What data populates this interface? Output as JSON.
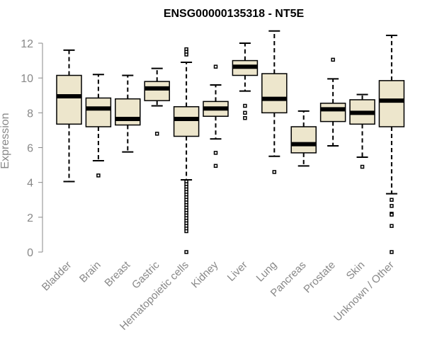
{
  "chart_data": {
    "type": "boxplot",
    "title": "ENSG00000135318 - NT5E",
    "xlabel": "",
    "ylabel": "Expression",
    "ylim": [
      0,
      12
    ],
    "yticks": [
      0,
      2,
      4,
      6,
      8,
      10,
      12
    ],
    "box_fill": "#ede6cc",
    "categories": [
      "Bladder",
      "Brain",
      "Breast",
      "Gastric",
      "Hematopoietic cells",
      "Kidney",
      "Liver",
      "Lung",
      "Pancreas",
      "Prostate",
      "Skin",
      "Unknown / Other"
    ],
    "boxes": [
      {
        "whisker_low": 4.05,
        "q1": 7.35,
        "median": 8.95,
        "q3": 10.15,
        "whisker_high": 11.6,
        "outliers": []
      },
      {
        "whisker_low": 5.25,
        "q1": 7.2,
        "median": 8.25,
        "q3": 8.85,
        "whisker_high": 10.2,
        "outliers": [
          4.4
        ]
      },
      {
        "whisker_low": 5.75,
        "q1": 7.3,
        "median": 7.65,
        "q3": 8.8,
        "whisker_high": 10.15,
        "outliers": []
      },
      {
        "whisker_low": 8.4,
        "q1": 8.7,
        "median": 9.4,
        "q3": 9.8,
        "whisker_high": 10.55,
        "outliers": [
          6.8
        ]
      },
      {
        "whisker_low": 4.15,
        "q1": 6.65,
        "median": 7.65,
        "q3": 8.35,
        "whisker_high": 10.9,
        "outliers": [
          11.65,
          11.5,
          11.35,
          4.05,
          3.9,
          3.75,
          3.6,
          3.45,
          3.3,
          3.15,
          3.0,
          2.85,
          2.7,
          2.55,
          2.4,
          2.25,
          2.1,
          1.95,
          1.8,
          1.65,
          1.5,
          1.35,
          1.2,
          0.0
        ]
      },
      {
        "whisker_low": 6.5,
        "q1": 7.8,
        "median": 8.25,
        "q3": 8.65,
        "whisker_high": 9.6,
        "outliers": [
          10.65,
          5.7,
          4.95
        ]
      },
      {
        "whisker_low": 9.25,
        "q1": 10.15,
        "median": 10.65,
        "q3": 11.0,
        "whisker_high": 12.0,
        "outliers": [
          8.4,
          8.0,
          7.7
        ]
      },
      {
        "whisker_low": 5.5,
        "q1": 8.0,
        "median": 8.8,
        "q3": 10.25,
        "whisker_high": 12.7,
        "outliers": [
          4.6
        ]
      },
      {
        "whisker_low": 4.95,
        "q1": 5.7,
        "median": 6.2,
        "q3": 7.2,
        "whisker_high": 8.1,
        "outliers": []
      },
      {
        "whisker_low": 6.1,
        "q1": 7.5,
        "median": 8.2,
        "q3": 8.55,
        "whisker_high": 9.95,
        "outliers": [
          11.05
        ]
      },
      {
        "whisker_low": 5.45,
        "q1": 7.35,
        "median": 8.0,
        "q3": 8.75,
        "whisker_high": 9.05,
        "outliers": [
          4.9
        ]
      },
      {
        "whisker_low": 3.35,
        "q1": 7.2,
        "median": 8.7,
        "q3": 9.85,
        "whisker_high": 12.45,
        "outliers": [
          3.0,
          2.65,
          2.2,
          2.15,
          1.5,
          0.0
        ]
      }
    ]
  }
}
